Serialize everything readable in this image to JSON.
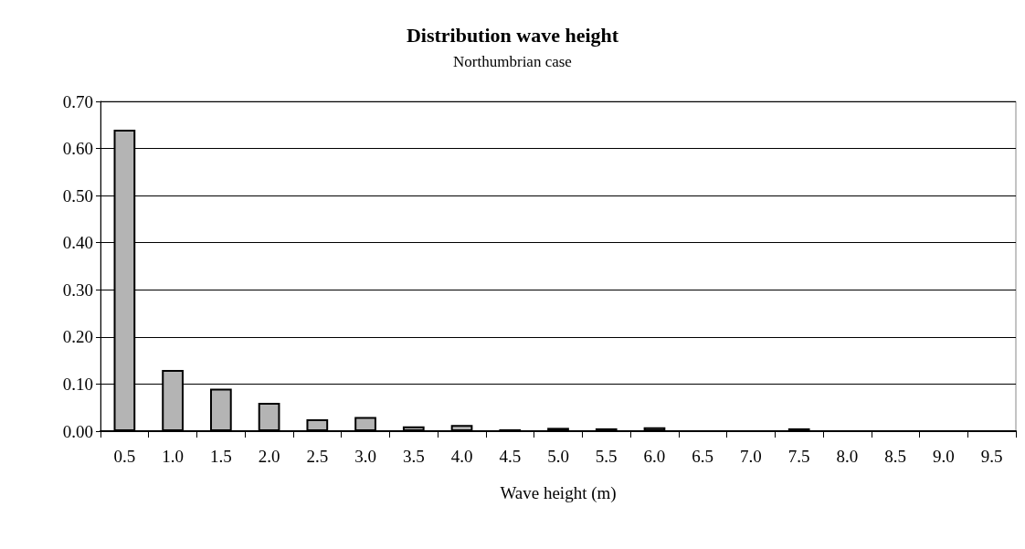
{
  "chart_data": {
    "type": "bar",
    "title": "Distribution wave height",
    "subtitle": "Northumbrian case",
    "xlabel": "Wave height (m)",
    "categories": [
      "0.5",
      "1.0",
      "1.5",
      "2.0",
      "2.5",
      "3.0",
      "3.5",
      "4.0",
      "4.5",
      "5.0",
      "5.5",
      "6.0",
      "6.5",
      "7.0",
      "7.5",
      "8.0",
      "8.5",
      "9.0",
      "9.5"
    ],
    "values": [
      0.64,
      0.13,
      0.09,
      0.06,
      0.025,
      0.03,
      0.01,
      0.013,
      0.004,
      0.007,
      0.006,
      0.008,
      0,
      0,
      0.006,
      0,
      0,
      0,
      0
    ],
    "color": "#b4b4b4",
    "ylim": [
      0,
      0.7
    ],
    "yticks": [
      {
        "value": 0,
        "label": "0.00"
      },
      {
        "value": 0.1,
        "label": "0.10"
      },
      {
        "value": 0.2,
        "label": "0.20"
      },
      {
        "value": 0.3,
        "label": "0.30"
      },
      {
        "value": 0.4,
        "label": "0.40"
      },
      {
        "value": 0.5,
        "label": "0.50"
      },
      {
        "value": 0.6,
        "label": "0.60"
      },
      {
        "value": 0.7,
        "label": "0.70"
      }
    ],
    "grid": "y"
  }
}
